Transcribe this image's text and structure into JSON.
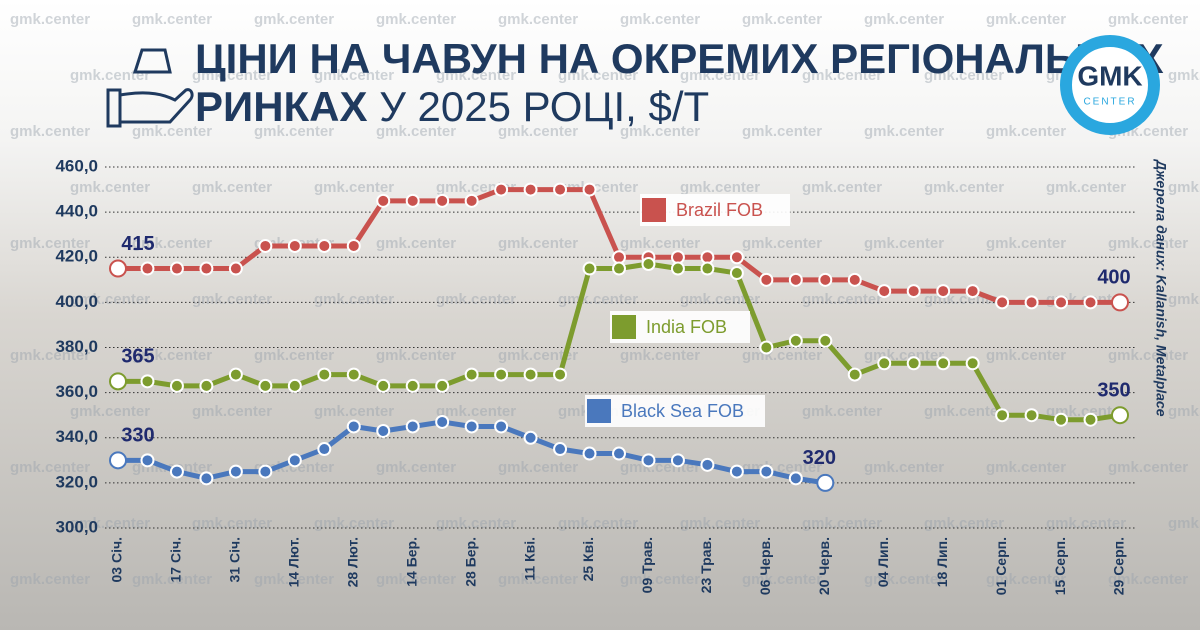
{
  "header": {
    "title_line1": "ЦІНИ НА ЧАВУН НА ОКРЕМИХ РЕГІОНАЛЬНИХ",
    "title_line2_bold": "РИНКАХ",
    "title_line2_rest": "У 2025 РОЦІ, $/Т",
    "logo_top": "GMK",
    "logo_bottom": "CENTER",
    "watermark": "gmk.center",
    "source": "Джерела даних: Kallanish, Metalplace"
  },
  "chart_data": {
    "type": "line",
    "categories": [
      "03 Січ.",
      null,
      "17 Січ.",
      null,
      "31 Січ.",
      null,
      "14 Лют.",
      null,
      "28 Лют.",
      null,
      "14 Бер.",
      null,
      "28 Бер.",
      null,
      "11 Кві.",
      null,
      "25 Кві.",
      null,
      "09 Трав.",
      null,
      "23 Трав.",
      null,
      "06 Черв.",
      null,
      "20 Черв.",
      null,
      "04 Лип.",
      null,
      "18 Лип.",
      null,
      "01 Серп.",
      null,
      "15 Серп.",
      null,
      "29 Серп."
    ],
    "series": [
      {
        "name": "Brazil FOB",
        "color": "#c9524e",
        "values": [
          415,
          415,
          415,
          415,
          415,
          425,
          425,
          425,
          425,
          445,
          445,
          445,
          445,
          450,
          450,
          450,
          450,
          420,
          420,
          420,
          420,
          420,
          410,
          410,
          410,
          410,
          405,
          405,
          405,
          405,
          400,
          400,
          400,
          400,
          400
        ]
      },
      {
        "name": "India FOB",
        "color": "#7d9c2e",
        "values": [
          365,
          365,
          363,
          363,
          368,
          363,
          363,
          368,
          368,
          363,
          363,
          363,
          368,
          368,
          368,
          368,
          415,
          415,
          417,
          415,
          415,
          413,
          380,
          383,
          383,
          368,
          373,
          373,
          373,
          373,
          350,
          350,
          348,
          348,
          350
        ]
      },
      {
        "name": "Black Sea FOB",
        "color": "#4a78bd",
        "values": [
          330,
          330,
          325,
          322,
          325,
          325,
          330,
          335,
          345,
          343,
          345,
          347,
          345,
          345,
          340,
          335,
          333,
          333,
          330,
          330,
          328,
          325,
          325,
          322,
          320,
          null,
          null,
          null,
          null,
          null,
          null,
          null,
          null,
          null,
          null
        ]
      }
    ],
    "ylim": [
      300,
      460
    ],
    "yticks": [
      {
        "value": 300,
        "label": "300,0"
      },
      {
        "value": 320,
        "label": "320,0"
      },
      {
        "value": 340,
        "label": "340,0"
      },
      {
        "value": 360,
        "label": "360,0"
      },
      {
        "value": 380,
        "label": "380,0"
      },
      {
        "value": 400,
        "label": "400,0"
      },
      {
        "value": 420,
        "label": "420,0"
      },
      {
        "value": 440,
        "label": "440,0"
      },
      {
        "value": 460,
        "label": "460,0"
      }
    ],
    "grid": true
  }
}
